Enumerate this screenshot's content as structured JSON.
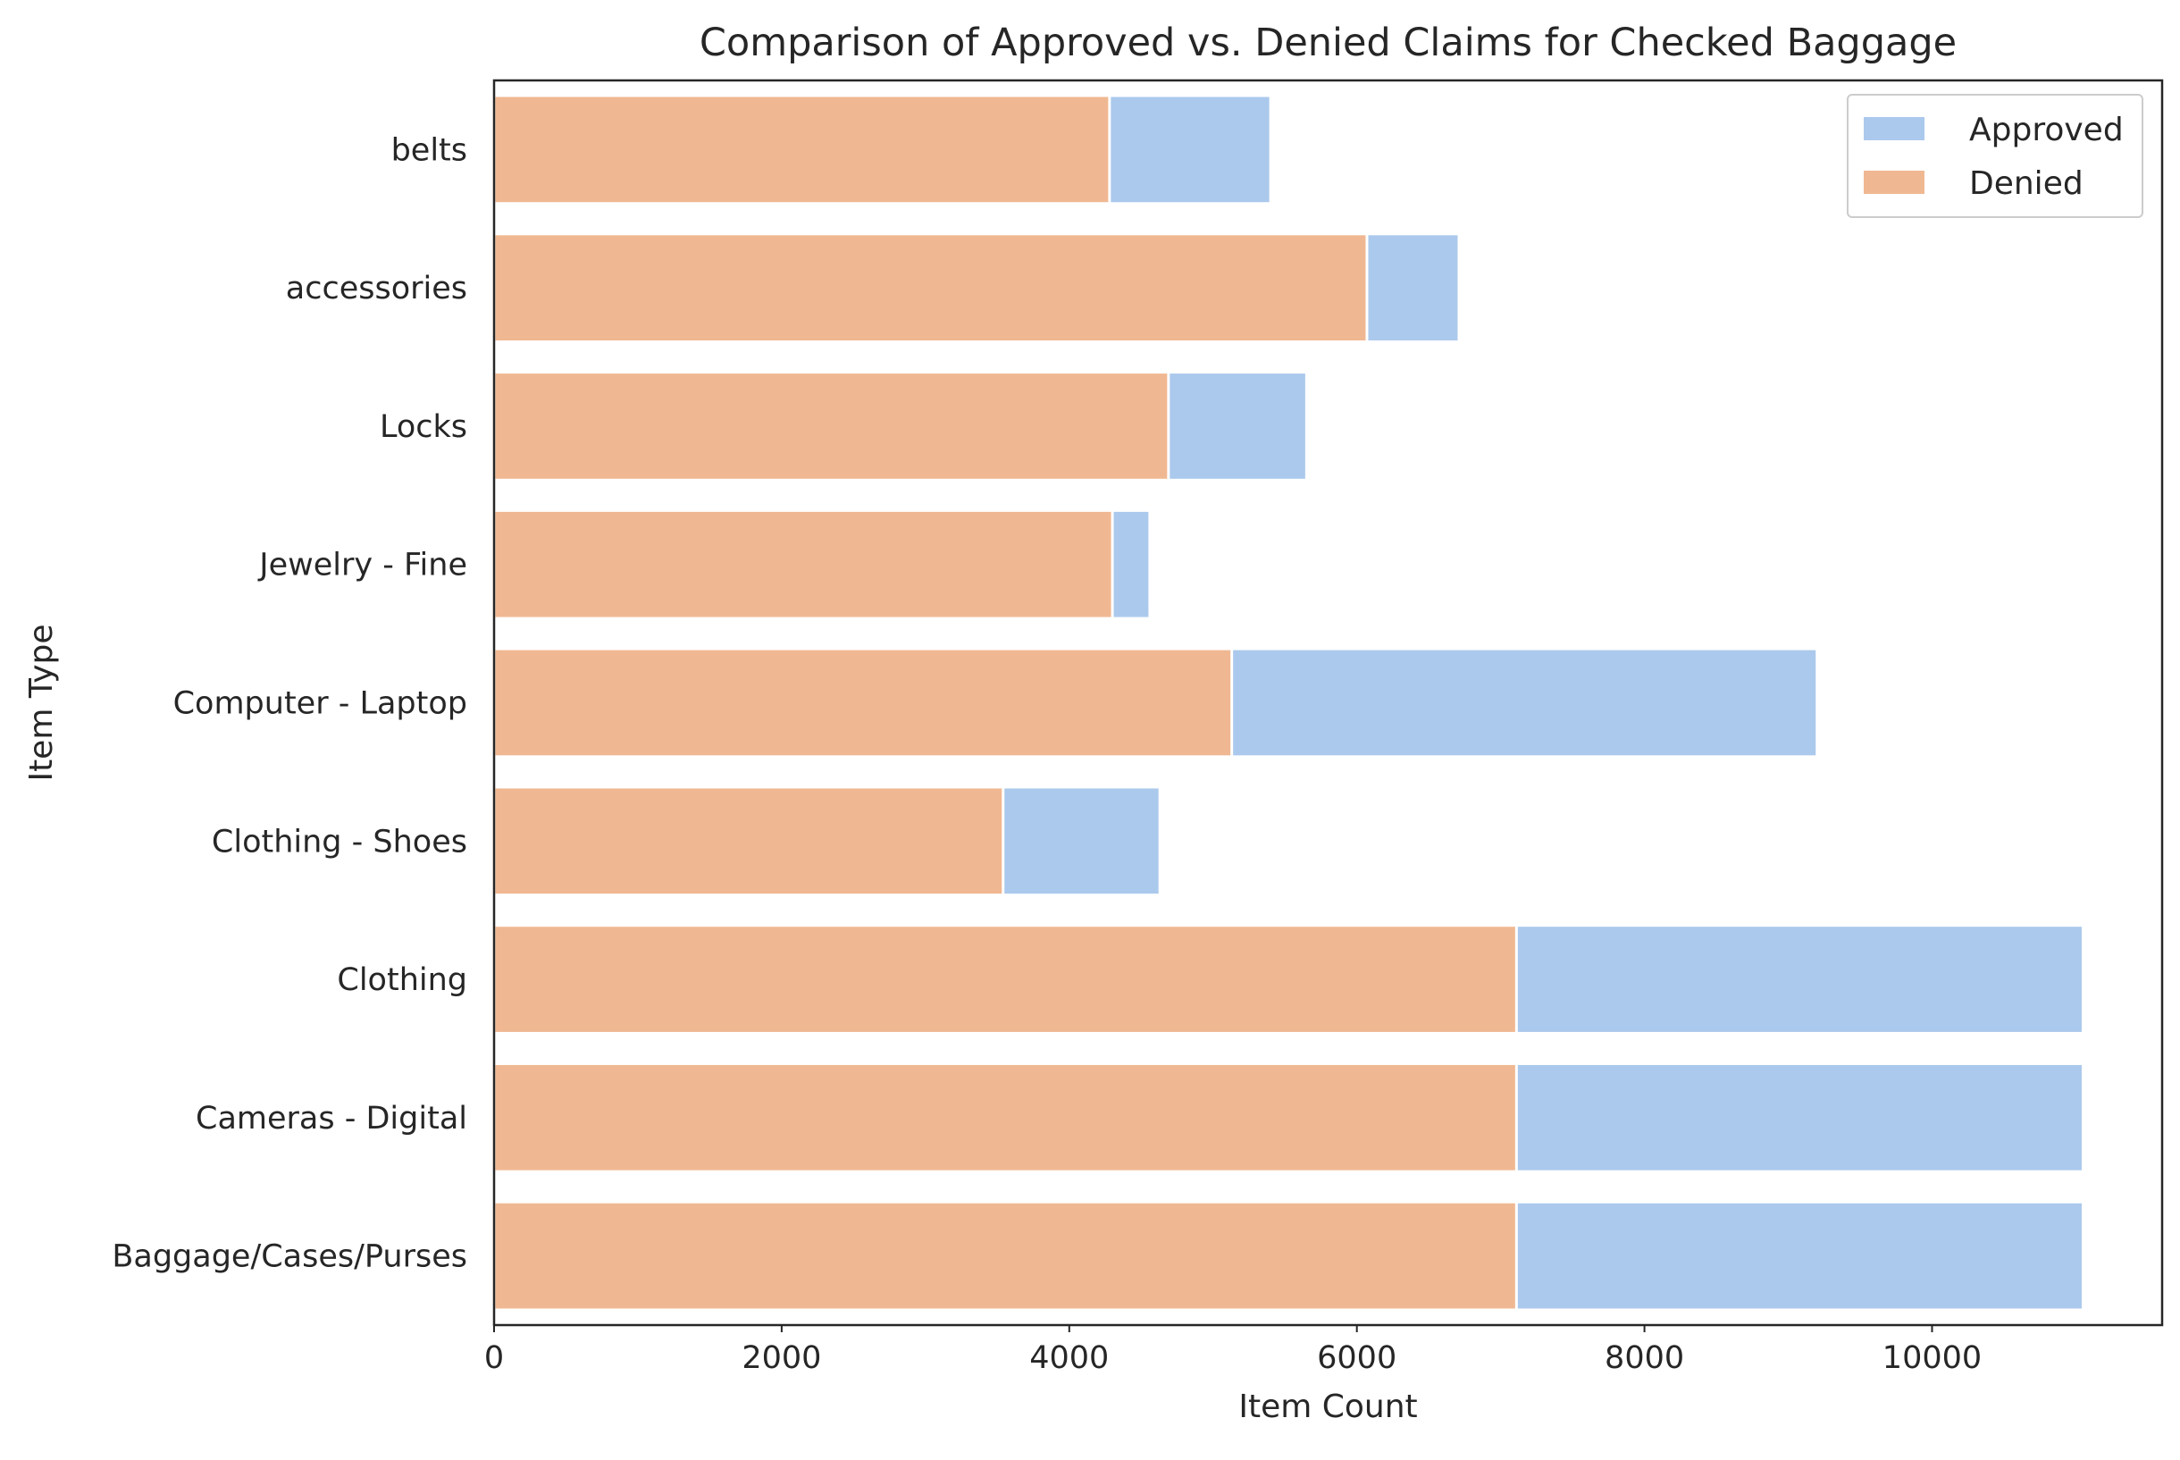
{
  "chart_data": {
    "type": "bar",
    "orientation": "horizontal",
    "stacking": "overlay",
    "title": "Comparison of Approved vs. Denied Claims for Checked Baggage",
    "xlabel": "Item Count",
    "ylabel": "Item Type",
    "xlim": [
      0,
      11600
    ],
    "xticks": [
      0,
      2000,
      4000,
      6000,
      8000,
      10000
    ],
    "grid": false,
    "legend_position": "top-right",
    "categories": [
      "belts",
      "accessories",
      "Locks",
      "Jewelry - Fine",
      "Computer - Laptop",
      "Clothing - Shoes",
      "Clothing",
      "Cameras - Digital",
      "Baggage/Cases/Purses"
    ],
    "series": [
      {
        "name": "Approved",
        "color": "#abc9ec",
        "values": [
          5400,
          6710,
          5650,
          4560,
          9200,
          4630,
          11050,
          11050,
          11050
        ]
      },
      {
        "name": "Denied",
        "color": "#f0b892",
        "values": [
          4280,
          6070,
          4690,
          4300,
          5130,
          3540,
          7110,
          7110,
          7110
        ]
      }
    ]
  }
}
